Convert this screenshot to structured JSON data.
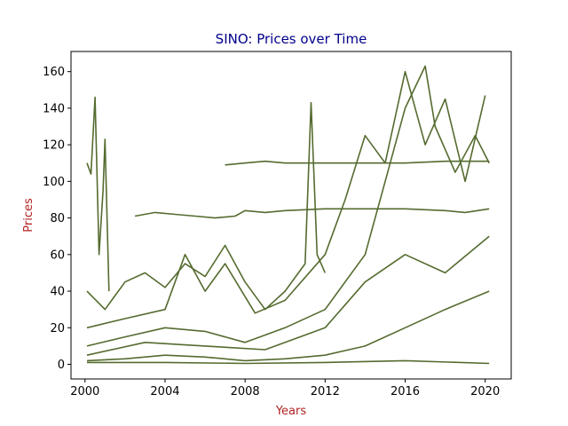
{
  "chart_data": {
    "type": "line",
    "title": "SINO: Prices over Time",
    "xlabel": "Years",
    "ylabel": "Prices",
    "xlim": [
      1999.3,
      2021.3
    ],
    "ylim": [
      -8,
      171
    ],
    "xticks": [
      2000,
      2004,
      2008,
      2012,
      2016,
      2020
    ],
    "yticks": [
      0,
      20,
      40,
      60,
      80,
      100,
      120,
      140,
      160
    ],
    "grid": false,
    "legend": "none",
    "colors": {
      "line": "#556b2f",
      "title": "#00008b",
      "axis_label": "#b22222"
    },
    "series": [
      {
        "x": [
          2000.1,
          2000.3,
          2000.5,
          2000.7,
          2000.9,
          2001.0,
          2001.2
        ],
        "y": [
          110,
          104,
          146,
          60,
          95,
          123,
          40
        ]
      },
      {
        "x": [
          2002.5,
          2003.5,
          2004.5,
          2005.5,
          2006.5,
          2007.5,
          2008.0,
          2009.0,
          2010.0,
          2012.0,
          2014.0,
          2016.0,
          2018.0,
          2019.0,
          2020.2
        ],
        "y": [
          81,
          83,
          82,
          81,
          80,
          81,
          84,
          83,
          84,
          85,
          85,
          85,
          84,
          83,
          85
        ]
      },
      {
        "x": [
          2007.0,
          2008.0,
          2009.0,
          2010.0,
          2012.0,
          2014.0,
          2016.0,
          2018.0,
          2020.2
        ],
        "y": [
          109,
          110,
          111,
          110,
          110,
          110,
          110,
          111,
          111
        ]
      },
      {
        "x": [
          2000.1,
          2001.0,
          2002.0,
          2003.0,
          2004.0,
          2005.0,
          2006.0,
          2007.0,
          2008.0,
          2009.0,
          2010.0,
          2011.0,
          2011.3,
          2011.6,
          2012.0
        ],
        "y": [
          40,
          30,
          45,
          50,
          42,
          55,
          48,
          65,
          45,
          30,
          40,
          55,
          143,
          60,
          50
        ]
      },
      {
        "x": [
          2000.1,
          2002.0,
          2004.0,
          2005.0,
          2006.0,
          2007.0,
          2008.5,
          2010.0,
          2012.0,
          2013.0,
          2014.0,
          2015.0,
          2016.0,
          2017.0,
          2018.0,
          2019.0,
          2020.0
        ],
        "y": [
          20,
          25,
          30,
          60,
          40,
          55,
          28,
          35,
          60,
          90,
          125,
          110,
          160,
          120,
          145,
          100,
          147
        ]
      },
      {
        "x": [
          2000.1,
          2002.0,
          2004.0,
          2006.0,
          2008.0,
          2010.0,
          2012.0,
          2014.0,
          2015.0,
          2016.0,
          2017.0,
          2017.5,
          2018.5,
          2019.5,
          2020.2
        ],
        "y": [
          10,
          15,
          20,
          18,
          12,
          20,
          30,
          60,
          100,
          140,
          163,
          130,
          105,
          125,
          110
        ]
      },
      {
        "x": [
          2000.1,
          2003.0,
          2006.0,
          2009.0,
          2012.0,
          2014.0,
          2016.0,
          2018.0,
          2020.2
        ],
        "y": [
          5,
          12,
          10,
          8,
          20,
          45,
          60,
          50,
          70
        ]
      },
      {
        "x": [
          2000.1,
          2002.0,
          2004.0,
          2006.0,
          2008.0,
          2010.0,
          2012.0,
          2014.0,
          2016.0,
          2018.0,
          2020.2
        ],
        "y": [
          2,
          3,
          5,
          4,
          2,
          3,
          5,
          10,
          20,
          30,
          40
        ]
      },
      {
        "x": [
          2000.1,
          2004.0,
          2008.0,
          2012.0,
          2016.0,
          2020.2
        ],
        "y": [
          1,
          1,
          0.5,
          1,
          2,
          0.5
        ]
      }
    ]
  }
}
